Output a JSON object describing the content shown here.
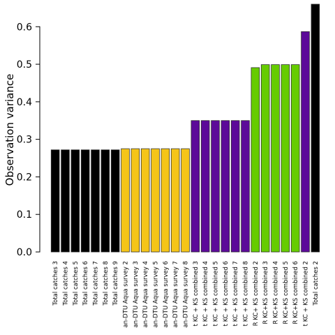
{
  "chart_data": {
    "type": "bar",
    "title": "",
    "xlabel": "",
    "ylabel": "Observation variance",
    "ylim": [
      0,
      0.66
    ],
    "yticks": [
      "0.0",
      "0.1",
      "0.2",
      "0.3",
      "0.4",
      "0.5",
      "0.6"
    ],
    "grid": false,
    "legend": "none",
    "categories": [
      "Total catches 3",
      "Total catches 4",
      "Total catches 5",
      "Total catches 6",
      "Total catches 7",
      "Total catches 8",
      "Total catches 9",
      "an-DTU Aqua survey 2",
      "an-DTU Aqua survey 3",
      "an-DTU Aqua survey 4",
      "an-DTU Aqua survey 5",
      "an-DTU Aqua survey 6",
      "an-DTU Aqua survey 7",
      "an-DTU Aqua survey 8",
      "t KC + KS combined 3",
      "t KC + KS combined 4",
      "t KC + KS combined 5",
      "t KC + KS combined 6",
      "t KC + KS combined 7",
      "t KC + KS combined 8",
      "R KC+ KS combined 2",
      "R KC+KS combined 3",
      "R KC+KS combined 4",
      "R KC+KS combined 5",
      "R KC+KS combined 6",
      "t KC + KS combined 2",
      "Total catches 2"
    ],
    "values": [
      0.272,
      0.272,
      0.272,
      0.272,
      0.272,
      0.272,
      0.272,
      0.275,
      0.275,
      0.275,
      0.275,
      0.275,
      0.275,
      0.275,
      0.35,
      0.35,
      0.35,
      0.35,
      0.35,
      0.35,
      0.491,
      0.499,
      0.499,
      0.499,
      0.499,
      0.587,
      0.7
    ],
    "colors": [
      "#000000",
      "#000000",
      "#000000",
      "#000000",
      "#000000",
      "#000000",
      "#000000",
      "#f5c518",
      "#f5c518",
      "#f5c518",
      "#f5c518",
      "#f5c518",
      "#f5c518",
      "#f5c518",
      "#5c0a99",
      "#5c0a99",
      "#5c0a99",
      "#5c0a99",
      "#5c0a99",
      "#5c0a99",
      "#66cc00",
      "#66cc00",
      "#66cc00",
      "#66cc00",
      "#66cc00",
      "#5c0a99",
      "#000000"
    ]
  }
}
